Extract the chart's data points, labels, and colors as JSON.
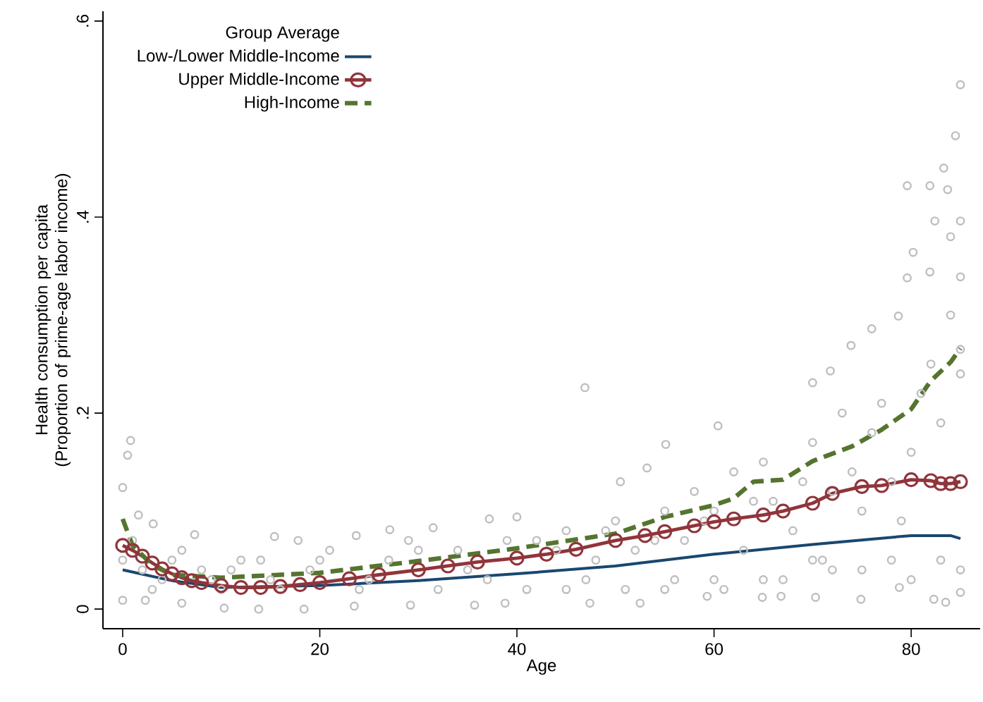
{
  "chart_data": {
    "type": "line",
    "xlabel": "Age",
    "ylabel": "Health consumption per capita (Proportion of prime-age labor income)",
    "legend_title": "Group Average",
    "legend": "top left",
    "xlim": [
      -2,
      87
    ],
    "ylim": [
      -0.02,
      0.61
    ],
    "xticks": [
      0,
      20,
      40,
      60,
      80
    ],
    "yticks": [
      0,
      {
        "value": 0.2,
        "label": ".2"
      },
      {
        "value": 0.4,
        "label": ".4"
      },
      {
        "value": 0.6,
        "label": ".6"
      }
    ],
    "series": [
      {
        "type": "scatter",
        "marker": "circle",
        "color": "#bebebe",
        "x": [
          0.8,
          0.5,
          0,
          1.6,
          3.1,
          7.3,
          15.4,
          17.8,
          23.7,
          27.1,
          31.5,
          37.2,
          40,
          0,
          2.3,
          6,
          10.3,
          13.8,
          18.4,
          23.5,
          29.2,
          35.7,
          38.8,
          47.4,
          52.5,
          59.3,
          64.9,
          66.8,
          70.3,
          74.9,
          78.8,
          82.3,
          83.5,
          85,
          85,
          84.5,
          83.3,
          79.6,
          81.9,
          83.7,
          82.4,
          84,
          85,
          80.2,
          79.6,
          81.9,
          85,
          78.7,
          76,
          73.9,
          85,
          46.9,
          71.8,
          70,
          60.4,
          55.1,
          53.2,
          50.5,
          0,
          1,
          2,
          4,
          5,
          8,
          10,
          12,
          15,
          20,
          25,
          30,
          35,
          42,
          45,
          48,
          50,
          52,
          55,
          57,
          58,
          60,
          62,
          63,
          65,
          66,
          68,
          70,
          72,
          73,
          75,
          76,
          77,
          78,
          80,
          81,
          82,
          83,
          84,
          85,
          75,
          78,
          80,
          83,
          85,
          65,
          70,
          72,
          60,
          55,
          45,
          3,
          6,
          9,
          11,
          14,
          16,
          19,
          21,
          24,
          27,
          29,
          32,
          34,
          37,
          39,
          41,
          44,
          47,
          49,
          51,
          54,
          56,
          59,
          61,
          64,
          67,
          69,
          71,
          74,
          79
        ],
        "values": [
          0.172,
          0.157,
          0.124,
          0.096,
          0.087,
          0.076,
          0.074,
          0.07,
          0.075,
          0.081,
          0.083,
          0.092,
          0.094,
          0.009,
          0.009,
          0.006,
          0.001,
          0.0,
          0.0,
          0.003,
          0.004,
          0.004,
          0.006,
          0.006,
          0.006,
          0.013,
          0.012,
          0.013,
          0.012,
          0.01,
          0.022,
          0.01,
          0.007,
          0.017,
          0.535,
          0.483,
          0.45,
          0.432,
          0.432,
          0.428,
          0.396,
          0.38,
          0.396,
          0.364,
          0.338,
          0.344,
          0.339,
          0.299,
          0.286,
          0.269,
          0.265,
          0.226,
          0.243,
          0.231,
          0.187,
          0.168,
          0.144,
          0.13,
          0.05,
          0.07,
          0.04,
          0.03,
          0.05,
          0.04,
          0.02,
          0.05,
          0.03,
          0.05,
          0.03,
          0.06,
          0.04,
          0.07,
          0.08,
          0.05,
          0.09,
          0.06,
          0.1,
          0.07,
          0.12,
          0.1,
          0.14,
          0.06,
          0.15,
          0.11,
          0.08,
          0.17,
          0.12,
          0.2,
          0.1,
          0.18,
          0.21,
          0.13,
          0.16,
          0.22,
          0.25,
          0.19,
          0.3,
          0.24,
          0.04,
          0.05,
          0.03,
          0.05,
          0.04,
          0.03,
          0.05,
          0.04,
          0.03,
          0.02,
          0.02,
          0.02,
          0.06,
          0.03,
          0.04,
          0.05,
          0.02,
          0.04,
          0.06,
          0.02,
          0.05,
          0.07,
          0.02,
          0.06,
          0.03,
          0.07,
          0.02,
          0.06,
          0.03,
          0.08,
          0.02,
          0.07,
          0.03,
          0.09,
          0.02,
          0.11,
          0.03,
          0.13,
          0.05,
          0.14,
          0.09
        ]
      },
      {
        "type": "line",
        "name": "Low-/Lower Middle-Income",
        "color": "#1a476f",
        "marker": "none",
        "line_style": "solid",
        "x": [
          0,
          5,
          10,
          20,
          30,
          40,
          50,
          60,
          70,
          80,
          84,
          85
        ],
        "values": [
          0.04,
          0.029,
          0.022,
          0.024,
          0.029,
          0.036,
          0.044,
          0.056,
          0.066,
          0.075,
          0.075,
          0.072
        ]
      },
      {
        "type": "line",
        "name": "Upper Middle-Income",
        "color": "#90353b",
        "marker": "circle",
        "line_style": "solid",
        "x": [
          0,
          1,
          2,
          3,
          4,
          5,
          6,
          7,
          8,
          10,
          12,
          14,
          16,
          18,
          20,
          23,
          26,
          30,
          33,
          36,
          40,
          43,
          46,
          50,
          53,
          55,
          58,
          60,
          62,
          65,
          67,
          70,
          72,
          75,
          77,
          80,
          82,
          83,
          84,
          85
        ],
        "values": [
          0.065,
          0.06,
          0.054,
          0.047,
          0.041,
          0.036,
          0.032,
          0.029,
          0.027,
          0.024,
          0.022,
          0.022,
          0.023,
          0.025,
          0.027,
          0.031,
          0.035,
          0.04,
          0.044,
          0.048,
          0.052,
          0.056,
          0.061,
          0.07,
          0.075,
          0.079,
          0.085,
          0.089,
          0.092,
          0.096,
          0.1,
          0.108,
          0.118,
          0.125,
          0.126,
          0.132,
          0.131,
          0.128,
          0.128,
          0.13
        ]
      },
      {
        "type": "line",
        "name": "High-Income",
        "color": "#55752f",
        "marker": "none",
        "line_style": "dashed",
        "x": [
          0,
          1,
          3,
          5,
          10,
          20,
          30,
          40,
          50,
          55,
          60,
          62,
          64,
          67,
          70,
          74,
          77,
          80,
          82,
          84,
          85
        ],
        "values": [
          0.092,
          0.065,
          0.045,
          0.035,
          0.032,
          0.037,
          0.049,
          0.062,
          0.077,
          0.094,
          0.106,
          0.113,
          0.13,
          0.132,
          0.151,
          0.166,
          0.183,
          0.204,
          0.233,
          0.252,
          0.266
        ]
      }
    ]
  }
}
